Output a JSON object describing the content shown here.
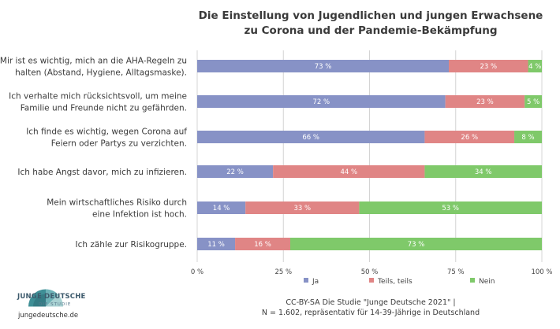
{
  "title_line1": "Die Einstellung von Jugendlichen und jungen Erwachsene",
  "title_line2": "zu Corona und der Pandemie-Bekämpfung",
  "chart_data": {
    "type": "bar",
    "orientation": "horizontal",
    "stacked": true,
    "percent": true,
    "categories": [
      [
        "Mir ist es wichtig, mich an die AHA-Regeln zu",
        "halten (Abstand, Hygiene, Alltagsmaske)."
      ],
      [
        "Ich verhalte mich rücksichtsvoll, um meine",
        "Familie und Freunde nicht zu gefährden."
      ],
      [
        "Ich finde es wichtig, wegen Corona auf",
        "Feiern oder Partys zu verzichten."
      ],
      [
        "Ich habe Angst davor, mich zu infizieren."
      ],
      [
        "Mein wirtschaftliches Risiko durch",
        "eine Infektion ist hoch."
      ],
      [
        "Ich zähle zur Risikogruppe."
      ]
    ],
    "series": [
      {
        "name": "Ja",
        "color": "#8792c6",
        "values": [
          73,
          72,
          66,
          22,
          14,
          11
        ]
      },
      {
        "name": "Teils, teils",
        "color": "#e08585",
        "values": [
          23,
          23,
          26,
          44,
          33,
          16
        ]
      },
      {
        "name": "Nein",
        "color": "#7fc96a",
        "values": [
          4,
          5,
          8,
          34,
          53,
          73
        ]
      }
    ],
    "xticks": [
      "0 %",
      "25 %",
      "50 %",
      "75 %",
      "100 %"
    ],
    "xlim": [
      0,
      100
    ],
    "grid": true,
    "legend_position": "bottom"
  },
  "footer_line1": "CC-BY-SA  Die Studie \"Junge Deutsche 2021\" |",
  "footer_line2": "N = 1.602, repräsentativ für 14-39-Jährige in Deutschland",
  "logo": {
    "name": "JUNGE DEUTSCHE",
    "subtitle": "DIE STUDIE",
    "url": "jungedeutsche.de"
  }
}
